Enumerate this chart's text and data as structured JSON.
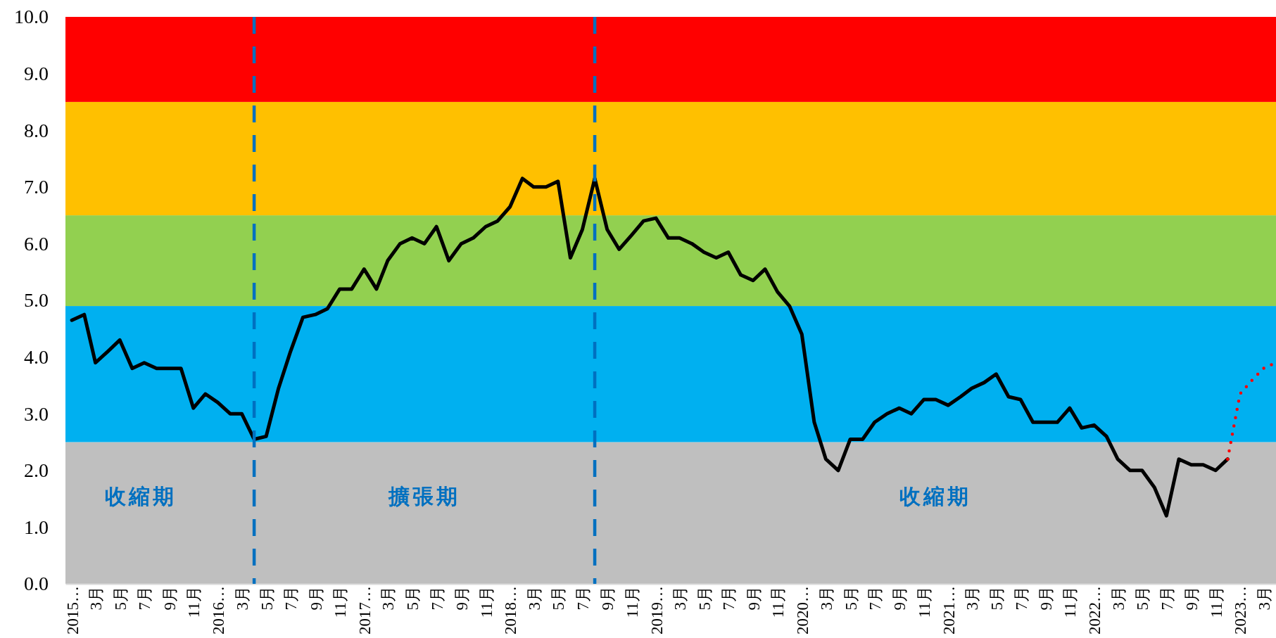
{
  "chart_data": {
    "type": "line",
    "x": [
      "2015-01",
      "2015-02",
      "2015-03",
      "2015-04",
      "2015-05",
      "2015-06",
      "2015-07",
      "2015-08",
      "2015-09",
      "2015-10",
      "2015-11",
      "2015-12",
      "2016-01",
      "2016-02",
      "2016-03",
      "2016-04",
      "2016-05",
      "2016-06",
      "2016-07",
      "2016-08",
      "2016-09",
      "2016-10",
      "2016-11",
      "2016-12",
      "2017-01",
      "2017-02",
      "2017-03",
      "2017-04",
      "2017-05",
      "2017-06",
      "2017-07",
      "2017-08",
      "2017-09",
      "2017-10",
      "2017-11",
      "2017-12",
      "2018-01",
      "2018-02",
      "2018-03",
      "2018-04",
      "2018-05",
      "2018-06",
      "2018-07",
      "2018-08",
      "2018-09",
      "2018-10",
      "2018-11",
      "2018-12",
      "2019-01",
      "2019-02",
      "2019-03",
      "2019-04",
      "2019-05",
      "2019-06",
      "2019-07",
      "2019-08",
      "2019-09",
      "2019-10",
      "2019-11",
      "2019-12",
      "2020-01",
      "2020-02",
      "2020-03",
      "2020-04",
      "2020-05",
      "2020-06",
      "2020-07",
      "2020-08",
      "2020-09",
      "2020-10",
      "2020-11",
      "2020-12",
      "2021-01",
      "2021-02",
      "2021-03",
      "2021-04",
      "2021-05",
      "2021-06",
      "2021-07",
      "2021-08",
      "2021-09",
      "2021-10",
      "2021-11",
      "2021-12",
      "2022-01",
      "2022-02",
      "2022-03",
      "2022-04",
      "2022-05",
      "2022-06",
      "2022-07",
      "2022-08",
      "2022-09",
      "2022-10",
      "2022-11",
      "2022-12"
    ],
    "series": [
      {
        "color": "#000000",
        "line_style": "solid",
        "values": [
          4.65,
          4.75,
          3.9,
          4.1,
          4.3,
          3.8,
          3.9,
          3.8,
          3.8,
          3.8,
          3.1,
          3.35,
          3.2,
          3.0,
          3.0,
          2.55,
          2.6,
          3.45,
          4.1,
          4.7,
          4.75,
          4.85,
          5.2,
          5.2,
          5.55,
          5.2,
          5.7,
          6.0,
          6.1,
          6.0,
          6.3,
          5.7,
          6.0,
          6.1,
          6.3,
          6.4,
          6.65,
          7.15,
          7.0,
          7.0,
          7.1,
          5.75,
          6.25,
          7.15,
          6.25,
          5.9,
          6.15,
          6.4,
          6.45,
          6.1,
          6.1,
          6.0,
          5.85,
          5.75,
          5.85,
          5.45,
          5.35,
          5.55,
          5.15,
          4.9,
          4.4,
          2.85,
          2.2,
          2.0,
          2.55,
          2.55,
          2.85,
          3.0,
          3.1,
          3.0,
          3.25,
          3.25,
          3.15,
          3.3,
          3.45,
          3.55,
          3.7,
          3.3,
          3.25,
          2.85,
          2.85,
          2.85,
          3.1,
          2.75,
          2.8,
          2.6,
          2.2,
          2.0,
          2.0,
          1.7,
          1.2,
          2.2,
          2.1,
          2.1,
          2.0,
          2.2
        ]
      },
      {
        "color": "#ff0000",
        "line_style": "dotted",
        "x": [
          "2022-12",
          "2023-01",
          "2023-02",
          "2023-03",
          "2023-04"
        ],
        "values": [
          2.2,
          3.35,
          3.6,
          3.8,
          3.9
        ]
      }
    ],
    "xlim": [
      "2014-12-16",
      "2023-04-01"
    ],
    "xticks": [
      {
        "value": "2015-01",
        "label": "2015…"
      },
      {
        "value": "2015-03",
        "label": "3月"
      },
      {
        "value": "2015-05",
        "label": "5月"
      },
      {
        "value": "2015-07",
        "label": "7月"
      },
      {
        "value": "2015-09",
        "label": "9月"
      },
      {
        "value": "2015-11",
        "label": "11月"
      },
      {
        "value": "2016-01",
        "label": "2016…"
      },
      {
        "value": "2016-03",
        "label": "3月"
      },
      {
        "value": "2016-05",
        "label": "5月"
      },
      {
        "value": "2016-07",
        "label": "7月"
      },
      {
        "value": "2016-09",
        "label": "9月"
      },
      {
        "value": "2016-11",
        "label": "11月"
      },
      {
        "value": "2017-01",
        "label": "2017…"
      },
      {
        "value": "2017-03",
        "label": "3月"
      },
      {
        "value": "2017-05",
        "label": "5月"
      },
      {
        "value": "2017-07",
        "label": "7月"
      },
      {
        "value": "2017-09",
        "label": "9月"
      },
      {
        "value": "2017-11",
        "label": "11月"
      },
      {
        "value": "2018-01",
        "label": "2018…"
      },
      {
        "value": "2018-03",
        "label": "3月"
      },
      {
        "value": "2018-05",
        "label": "5月"
      },
      {
        "value": "2018-07",
        "label": "7月"
      },
      {
        "value": "2018-09",
        "label": "9月"
      },
      {
        "value": "2018-11",
        "label": "11月"
      },
      {
        "value": "2019-01",
        "label": "2019…"
      },
      {
        "value": "2019-03",
        "label": "3月"
      },
      {
        "value": "2019-05",
        "label": "5月"
      },
      {
        "value": "2019-07",
        "label": "7月"
      },
      {
        "value": "2019-09",
        "label": "9月"
      },
      {
        "value": "2019-11",
        "label": "11月"
      },
      {
        "value": "2020-01",
        "label": "2020…"
      },
      {
        "value": "2020-03",
        "label": "3月"
      },
      {
        "value": "2020-05",
        "label": "5月"
      },
      {
        "value": "2020-07",
        "label": "7月"
      },
      {
        "value": "2020-09",
        "label": "9月"
      },
      {
        "value": "2020-11",
        "label": "11月"
      },
      {
        "value": "2021-01",
        "label": "2021…"
      },
      {
        "value": "2021-03",
        "label": "3月"
      },
      {
        "value": "2021-05",
        "label": "5月"
      },
      {
        "value": "2021-07",
        "label": "7月"
      },
      {
        "value": "2021-09",
        "label": "9月"
      },
      {
        "value": "2021-11",
        "label": "11月"
      },
      {
        "value": "2022-01",
        "label": "2022…"
      },
      {
        "value": "2022-03",
        "label": "3月"
      },
      {
        "value": "2022-05",
        "label": "5月"
      },
      {
        "value": "2022-07",
        "label": "7月"
      },
      {
        "value": "2022-09",
        "label": "9月"
      },
      {
        "value": "2022-11",
        "label": "11月"
      },
      {
        "value": "2023-01",
        "label": "2023…"
      },
      {
        "value": "2023-03",
        "label": "3月"
      }
    ],
    "ylim": [
      0,
      10
    ],
    "yticks": [
      {
        "value": 0,
        "label": "0.0"
      },
      {
        "value": 1,
        "label": "1.0"
      },
      {
        "value": 2,
        "label": "2.0"
      },
      {
        "value": 3,
        "label": "3.0"
      },
      {
        "value": 4,
        "label": "4.0"
      },
      {
        "value": 5,
        "label": "5.0"
      },
      {
        "value": 6,
        "label": "6.0"
      },
      {
        "value": 7,
        "label": "7.0"
      },
      {
        "value": 8,
        "label": "8.0"
      },
      {
        "value": 9,
        "label": "9.0"
      },
      {
        "value": 10,
        "label": "10.0"
      }
    ],
    "bands": [
      {
        "axis": "y",
        "from": 0,
        "to": 2.5,
        "color": "#bfbfbf"
      },
      {
        "axis": "y",
        "from": 2.5,
        "to": 4.9,
        "color": "#00b0f0"
      },
      {
        "axis": "y",
        "from": 4.9,
        "to": 6.5,
        "color": "#92d050"
      },
      {
        "axis": "y",
        "from": 6.5,
        "to": 8.5,
        "color": "#ffc000"
      },
      {
        "axis": "y",
        "from": 8.5,
        "to": 10,
        "color": "#ff0000"
      }
    ],
    "ref_lines": [
      {
        "axis": "x",
        "value": "2016-04",
        "color": "#0070c0",
        "line_style": "dashed"
      },
      {
        "axis": "x",
        "value": "2018-08",
        "color": "#0070c0",
        "line_style": "dashed"
      }
    ],
    "annotations": [
      "收縮期",
      "擴張期",
      "收縮期"
    ]
  }
}
